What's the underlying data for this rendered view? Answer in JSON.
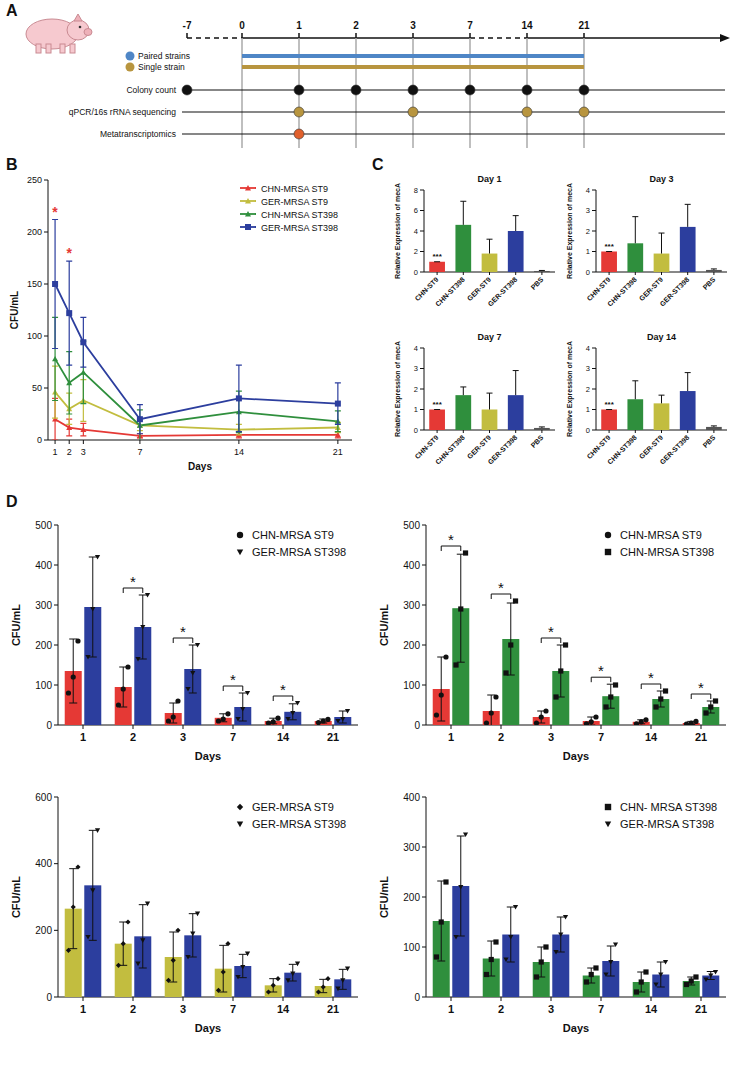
{
  "panel_labels": [
    "A",
    "B",
    "C",
    "D"
  ],
  "timeline": {
    "days": [
      -7,
      0,
      1,
      2,
      3,
      7,
      14,
      21
    ],
    "bars": [
      {
        "label": "Paired strains",
        "color": "#4f86c6",
        "from": 0,
        "to": 21
      },
      {
        "label": "Single strain",
        "color": "#b8953f",
        "from": 0,
        "to": 21
      }
    ],
    "rows": [
      {
        "label": "Colony count",
        "color": "#111111",
        "days": [
          -7,
          1,
          2,
          3,
          7,
          14,
          21
        ]
      },
      {
        "label": "qPCR/16s rRNA sequencing",
        "color": "#b8953f",
        "days": [
          1,
          3,
          14,
          21
        ]
      },
      {
        "label": "Metatranscriptomics",
        "color": "#e0602c",
        "days": [
          1
        ]
      }
    ]
  },
  "chart_data": [
    {
      "type": "line",
      "x": [
        1,
        2,
        3,
        7,
        14,
        21
      ],
      "xlim": [
        0.5,
        22
      ],
      "xticks": [
        1,
        2,
        3,
        7,
        14,
        21
      ],
      "ylim": [
        0,
        250
      ],
      "yticks": [
        0,
        50,
        100,
        150,
        200,
        250
      ],
      "x_label": "Days",
      "y_label": "CFU/mL",
      "legend": "upper right",
      "grid": false,
      "series": [
        {
          "name": "CHN-MRSA ST9",
          "color": "#e53935",
          "marker": "triangle",
          "values": [
            20,
            12,
            10,
            4,
            5,
            5
          ],
          "errors": [
            20,
            8,
            6,
            2,
            3,
            3
          ]
        },
        {
          "name": "GER-MRSA ST9",
          "color": "#c2bd3f",
          "marker": "triangle",
          "values": [
            46,
            30,
            38,
            14,
            10,
            12
          ],
          "errors": [
            25,
            15,
            20,
            5,
            5,
            5
          ]
        },
        {
          "name": "CHN-MRSA ST398",
          "color": "#2f8f3d",
          "marker": "triangle",
          "values": [
            78,
            55,
            65,
            14,
            27,
            18
          ],
          "errors": [
            40,
            30,
            30,
            15,
            20,
            10
          ]
        },
        {
          "name": "GER-MRSA ST398",
          "color": "#2c3e9e",
          "marker": "square",
          "values": [
            150,
            122,
            94,
            20,
            40,
            35
          ],
          "errors": [
            62,
            50,
            24,
            14,
            32,
            20
          ]
        }
      ],
      "annotations": [
        {
          "x": 1,
          "text": "*",
          "color": "#e53935"
        },
        {
          "x": 2,
          "text": "*",
          "color": "#e53935"
        }
      ]
    },
    {
      "type": "bar",
      "title": "Day 1",
      "y_label": "Relative Expression of mecA",
      "categories": [
        "CHN-ST9",
        "CHN-ST398",
        "GER-ST9",
        "GER-ST398",
        "PBS"
      ],
      "values": [
        1,
        4.6,
        1.8,
        4.0,
        0.1
      ],
      "errors": [
        0,
        2.3,
        1.4,
        1.5,
        0.05
      ],
      "colors": [
        "#e53935",
        "#2f8f3d",
        "#c2bd3f",
        "#2c3e9e",
        "#555555"
      ],
      "ylim": [
        0,
        8
      ],
      "yticks": [
        0,
        2,
        4,
        6,
        8
      ],
      "grid": false,
      "annotations": [
        {
          "x": "CHN-ST9",
          "text": "***"
        }
      ]
    },
    {
      "type": "bar",
      "title": "Day 3",
      "y_label": "Relative Expression of mecA",
      "categories": [
        "CHN-ST9",
        "CHN-ST398",
        "GER-ST9",
        "GER-ST398",
        "PBS"
      ],
      "values": [
        1,
        1.4,
        0.9,
        2.2,
        0.1
      ],
      "errors": [
        0,
        1.3,
        1.0,
        1.1,
        0.05
      ],
      "colors": [
        "#e53935",
        "#2f8f3d",
        "#c2bd3f",
        "#2c3e9e",
        "#555555"
      ],
      "ylim": [
        0,
        4
      ],
      "yticks": [
        0,
        1,
        2,
        3,
        4
      ],
      "grid": false,
      "annotations": [
        {
          "x": "CHN-ST9",
          "text": "***"
        }
      ]
    },
    {
      "type": "bar",
      "title": "Day 7",
      "y_label": "Relative Expression of mecA",
      "categories": [
        "CHN-ST9",
        "CHN-ST398",
        "GER-ST9",
        "GER-ST398",
        "PBS"
      ],
      "values": [
        1,
        1.7,
        1.0,
        1.7,
        0.1
      ],
      "errors": [
        0,
        0.4,
        0.8,
        1.2,
        0.05
      ],
      "colors": [
        "#e53935",
        "#2f8f3d",
        "#c2bd3f",
        "#2c3e9e",
        "#555555"
      ],
      "ylim": [
        0,
        4
      ],
      "yticks": [
        0,
        1,
        2,
        3,
        4
      ],
      "grid": false,
      "annotations": [
        {
          "x": "CHN-ST9",
          "text": "***"
        }
      ]
    },
    {
      "type": "bar",
      "title": "Day 14",
      "y_label": "Relative Expression of mecA",
      "categories": [
        "CHN-ST9",
        "CHN-ST398",
        "GER-ST9",
        "GER-ST398",
        "PBS"
      ],
      "values": [
        1,
        1.5,
        1.3,
        1.9,
        0.15
      ],
      "errors": [
        0,
        0.9,
        0.4,
        0.9,
        0.05
      ],
      "colors": [
        "#e53935",
        "#2f8f3d",
        "#c2bd3f",
        "#2c3e9e",
        "#555555"
      ],
      "ylim": [
        0,
        4
      ],
      "yticks": [
        0,
        1,
        2,
        3,
        4
      ],
      "grid": false,
      "annotations": [
        {
          "x": "CHN-ST9",
          "text": "***"
        }
      ]
    },
    {
      "type": "bar",
      "categories": [
        "1",
        "2",
        "3",
        "7",
        "14",
        "21"
      ],
      "x_label": "Days",
      "y_label": "CFU/mL",
      "ylim": [
        0,
        500
      ],
      "yticks": [
        0,
        100,
        200,
        300,
        400,
        500
      ],
      "legend": "upper right",
      "grid": false,
      "series": [
        {
          "name": "CHN-MRSA ST9",
          "color": "#e53935",
          "marker": "circle",
          "values": [
            135,
            95,
            30,
            18,
            10,
            10
          ],
          "errors": [
            80,
            50,
            25,
            10,
            7,
            5
          ],
          "points": [
            [
              80,
              120,
              210
            ],
            [
              50,
              90,
              145
            ],
            [
              10,
              20,
              60
            ],
            [
              10,
              15,
              28
            ],
            [
              5,
              8,
              17
            ],
            [
              6,
              10,
              14
            ]
          ]
        },
        {
          "name": "GER-MRSA ST398",
          "color": "#2c3e9e",
          "marker": "triangle-down",
          "values": [
            295,
            245,
            140,
            45,
            33,
            20
          ],
          "errors": [
            125,
            80,
            60,
            35,
            20,
            15
          ],
          "points": [
            [
              170,
              290,
              420
            ],
            [
              165,
              245,
              325
            ],
            [
              90,
              130,
              200
            ],
            [
              15,
              40,
              80
            ],
            [
              15,
              30,
              55
            ],
            [
              10,
              15,
              35
            ]
          ]
        }
      ],
      "annotations": [
        {
          "x": "2",
          "text": "*"
        },
        {
          "x": "3",
          "text": "*"
        },
        {
          "x": "7",
          "text": "*"
        },
        {
          "x": "14",
          "text": "*"
        }
      ]
    },
    {
      "type": "bar",
      "categories": [
        "1",
        "2",
        "3",
        "7",
        "14",
        "21"
      ],
      "x_label": "Days",
      "y_label": "CFU/mL",
      "ylim": [
        0,
        500
      ],
      "yticks": [
        0,
        100,
        200,
        300,
        400,
        500
      ],
      "legend": "upper right",
      "grid": false,
      "series": [
        {
          "name": "CHN-MRSA ST9",
          "color": "#e53935",
          "marker": "circle",
          "values": [
            90,
            35,
            20,
            10,
            8,
            5
          ],
          "errors": [
            80,
            40,
            15,
            10,
            5,
            4
          ],
          "points": [
            [
              25,
              75,
              170
            ],
            [
              5,
              30,
              70
            ],
            [
              5,
              20,
              35
            ],
            [
              3,
              8,
              20
            ],
            [
              3,
              8,
              13
            ],
            [
              2,
              5,
              9
            ]
          ]
        },
        {
          "name": "CHN-MRSA ST398",
          "color": "#2f8f3d",
          "marker": "square",
          "values": [
            292,
            215,
            135,
            72,
            65,
            45
          ],
          "errors": [
            135,
            90,
            65,
            30,
            20,
            15
          ],
          "points": [
            [
              150,
              290,
              430
            ],
            [
              130,
              200,
              310
            ],
            [
              70,
              135,
              200
            ],
            [
              45,
              70,
              100
            ],
            [
              45,
              65,
              85
            ],
            [
              30,
              45,
              60
            ]
          ]
        }
      ],
      "annotations": [
        {
          "x": "1",
          "text": "*"
        },
        {
          "x": "2",
          "text": "*"
        },
        {
          "x": "3",
          "text": "*"
        },
        {
          "x": "7",
          "text": "*"
        },
        {
          "x": "14",
          "text": "*"
        },
        {
          "x": "21",
          "text": "*"
        }
      ]
    },
    {
      "type": "bar",
      "categories": [
        "1",
        "2",
        "3",
        "7",
        "14",
        "21"
      ],
      "x_label": "Days",
      "y_label": "CFU/mL",
      "ylim": [
        0,
        600
      ],
      "yticks": [
        0,
        200,
        400,
        600
      ],
      "legend": "upper right",
      "grid": false,
      "series": [
        {
          "name": "GER-MRSA ST9",
          "color": "#c2bd3f",
          "marker": "diamond",
          "values": [
            265,
            160,
            120,
            85,
            35,
            33
          ],
          "errors": [
            120,
            65,
            75,
            70,
            20,
            20
          ],
          "points": [
            [
              140,
              270,
              390
            ],
            [
              95,
              160,
              225
            ],
            [
              50,
              110,
              200
            ],
            [
              20,
              75,
              160
            ],
            [
              15,
              35,
              55
            ],
            [
              15,
              30,
              55
            ]
          ]
        },
        {
          "name": "GER-MRSA ST398",
          "color": "#2c3e9e",
          "marker": "triangle-down",
          "values": [
            335,
            182,
            185,
            93,
            73,
            53
          ],
          "errors": [
            165,
            95,
            65,
            35,
            25,
            30
          ],
          "points": [
            [
              180,
              320,
              500
            ],
            [
              100,
              170,
              280
            ],
            [
              120,
              190,
              250
            ],
            [
              60,
              90,
              130
            ],
            [
              50,
              70,
              100
            ],
            [
              25,
              50,
              85
            ]
          ]
        }
      ],
      "annotations": []
    },
    {
      "type": "bar",
      "categories": [
        "1",
        "2",
        "3",
        "7",
        "14",
        "21"
      ],
      "x_label": "Days",
      "y_label": "CFU/mL",
      "ylim": [
        0,
        400
      ],
      "yticks": [
        0,
        100,
        200,
        300,
        400
      ],
      "legend": "upper right",
      "grid": false,
      "series": [
        {
          "name": "CHN- MRSA ST398",
          "color": "#2f8f3d",
          "marker": "square",
          "values": [
            152,
            77,
            70,
            43,
            30,
            32
          ],
          "errors": [
            80,
            35,
            30,
            15,
            20,
            8
          ],
          "points": [
            [
              80,
              150,
              230
            ],
            [
              45,
              75,
              110
            ],
            [
              40,
              70,
              100
            ],
            [
              30,
              45,
              58
            ],
            [
              10,
              30,
              50
            ],
            [
              25,
              32,
              40
            ]
          ]
        },
        {
          "name": "GER-MRSA ST398",
          "color": "#2c3e9e",
          "marker": "triangle-down",
          "values": [
            222,
            125,
            125,
            72,
            45,
            43
          ],
          "errors": [
            100,
            55,
            35,
            30,
            25,
            8
          ],
          "points": [
            [
              120,
              220,
              325
            ],
            [
              75,
              120,
              180
            ],
            [
              90,
              125,
              160
            ],
            [
              45,
              70,
              105
            ],
            [
              25,
              45,
              70
            ],
            [
              35,
              43,
              50
            ]
          ]
        }
      ],
      "annotations": []
    }
  ]
}
